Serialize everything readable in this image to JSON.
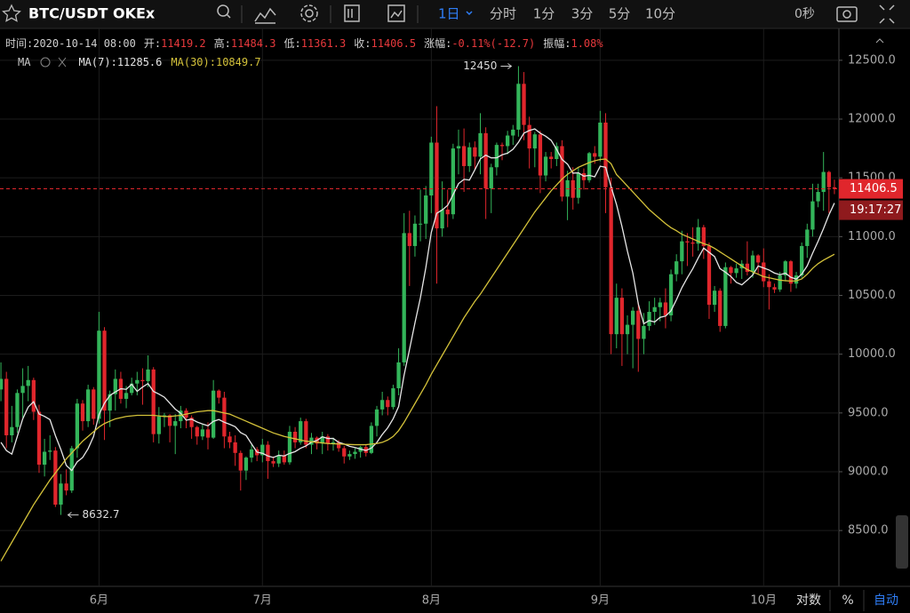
{
  "toolbar": {
    "symbol": "BTC/USDT OKEx",
    "interval": "1日",
    "intervals": [
      "分时",
      "1分",
      "3分",
      "5分",
      "10分"
    ],
    "countdown_setting": "0秒"
  },
  "header": {
    "time_label": "时间:",
    "time": "2020-10-14 08:00",
    "open_label": "开:",
    "high_label": "高:",
    "low_label": "低:",
    "close_label": "收:",
    "change_label": "涨幅:",
    "change": "-0.11%(-12.7)",
    "amplitude_label": "振幅:",
    "amplitude": "1.08%"
  },
  "indicator": "MA",
  "bottom_bar": [
    "对数",
    "%",
    "自动"
  ],
  "chart_data": {
    "type": "candlestick",
    "categories": [
      null,
      null,
      null,
      null,
      null,
      null,
      null,
      null,
      null,
      null,
      null,
      null,
      null,
      null,
      null,
      null,
      null,
      null,
      "6月",
      null,
      null,
      null,
      null,
      null,
      null,
      null,
      null,
      null,
      null,
      null,
      null,
      null,
      null,
      null,
      null,
      null,
      null,
      null,
      null,
      null,
      null,
      null,
      null,
      null,
      null,
      null,
      null,
      null,
      "7月",
      null,
      null,
      null,
      null,
      null,
      null,
      null,
      null,
      null,
      null,
      null,
      null,
      null,
      null,
      null,
      null,
      null,
      null,
      null,
      null,
      null,
      null,
      null,
      null,
      null,
      null,
      null,
      null,
      null,
      null,
      "8月",
      null,
      null,
      null,
      null,
      null,
      null,
      null,
      null,
      null,
      null,
      null,
      null,
      null,
      null,
      null,
      null,
      null,
      null,
      null,
      null,
      null,
      null,
      null,
      null,
      null,
      null,
      null,
      null,
      null,
      null,
      "9月",
      null,
      null,
      null,
      null,
      null,
      null,
      null,
      null,
      null,
      null,
      null,
      null,
      null,
      null,
      null,
      null,
      null,
      null,
      null,
      null,
      null,
      null,
      null,
      null,
      null,
      null,
      null,
      null,
      null,
      "10月",
      null,
      null,
      null,
      null,
      null,
      null,
      null,
      null,
      null,
      null,
      null,
      null,
      null
    ],
    "ohlc": [
      [
        9700,
        9930,
        9600,
        9790
      ],
      [
        9790,
        9850,
        9200,
        9310
      ],
      [
        9310,
        9560,
        9250,
        9380
      ],
      [
        9380,
        9700,
        9330,
        9670
      ],
      [
        9670,
        9880,
        9460,
        9730
      ],
      [
        9730,
        9900,
        9600,
        9780
      ],
      [
        9780,
        9800,
        9440,
        9510
      ],
      [
        9510,
        9570,
        8990,
        9060
      ],
      [
        9060,
        9280,
        8960,
        9170
      ],
      [
        9170,
        9310,
        9100,
        9180
      ],
      [
        9180,
        9210,
        8700,
        8720
      ],
      [
        8720,
        8980,
        8632.7,
        8900
      ],
      [
        8900,
        9020,
        8800,
        8840
      ],
      [
        8840,
        9220,
        8820,
        9200
      ],
      [
        9200,
        9620,
        9120,
        9580
      ],
      [
        9580,
        9610,
        9350,
        9430
      ],
      [
        9430,
        9740,
        9380,
        9700
      ],
      [
        9700,
        9720,
        9400,
        9450
      ],
      [
        9450,
        10360,
        9410,
        10200
      ],
      [
        10200,
        10230,
        9270,
        9520
      ],
      [
        9520,
        9690,
        9380,
        9660
      ],
      [
        9660,
        9870,
        9520,
        9790
      ],
      [
        9790,
        9850,
        9580,
        9620
      ],
      [
        9620,
        9730,
        9540,
        9670
      ],
      [
        9670,
        9800,
        9650,
        9750
      ],
      [
        9750,
        9850,
        9650,
        9780
      ],
      [
        9780,
        9880,
        9570,
        9770
      ],
      [
        9770,
        9990,
        9720,
        9870
      ],
      [
        9870,
        9890,
        9250,
        9320
      ],
      [
        9320,
        9550,
        9240,
        9470
      ],
      [
        9470,
        9500,
        9380,
        9480
      ],
      [
        9480,
        9490,
        9250,
        9390
      ],
      [
        9390,
        9490,
        9150,
        9430
      ],
      [
        9430,
        9560,
        9370,
        9520
      ],
      [
        9520,
        9540,
        9370,
        9460
      ],
      [
        9460,
        9480,
        9280,
        9380
      ],
      [
        9380,
        9390,
        9230,
        9300
      ],
      [
        9300,
        9400,
        9270,
        9360
      ],
      [
        9360,
        9420,
        9190,
        9290
      ],
      [
        9290,
        9780,
        9280,
        9690
      ],
      [
        9690,
        9700,
        9580,
        9630
      ],
      [
        9630,
        9680,
        9200,
        9300
      ],
      [
        9300,
        9340,
        9200,
        9250
      ],
      [
        9250,
        9310,
        9050,
        9160
      ],
      [
        9160,
        9180,
        8840,
        9010
      ],
      [
        9010,
        9130,
        8930,
        9120
      ],
      [
        9120,
        9230,
        9080,
        9190
      ],
      [
        9190,
        9210,
        9090,
        9140
      ],
      [
        9140,
        9280,
        9080,
        9230
      ],
      [
        9230,
        9260,
        8940,
        9090
      ],
      [
        9090,
        9130,
        9040,
        9070
      ],
      [
        9070,
        9180,
        9040,
        9140
      ],
      [
        9140,
        9180,
        9060,
        9080
      ],
      [
        9080,
        9390,
        9060,
        9340
      ],
      [
        9340,
        9380,
        9200,
        9250
      ],
      [
        9250,
        9460,
        9230,
        9430
      ],
      [
        9430,
        9450,
        9200,
        9230
      ],
      [
        9230,
        9330,
        9150,
        9290
      ],
      [
        9290,
        9300,
        9190,
        9240
      ],
      [
        9240,
        9340,
        9150,
        9300
      ],
      [
        9300,
        9320,
        9180,
        9240
      ],
      [
        9240,
        9290,
        9180,
        9250
      ],
      [
        9250,
        9270,
        9170,
        9200
      ],
      [
        9200,
        9220,
        9070,
        9130
      ],
      [
        9130,
        9180,
        9100,
        9150
      ],
      [
        9150,
        9200,
        9110,
        9170
      ],
      [
        9170,
        9220,
        9120,
        9210
      ],
      [
        9210,
        9230,
        9130,
        9160
      ],
      [
        9160,
        9420,
        9150,
        9390
      ],
      [
        9390,
        9560,
        9300,
        9530
      ],
      [
        9530,
        9680,
        9480,
        9610
      ],
      [
        9610,
        9640,
        9480,
        9550
      ],
      [
        9550,
        9740,
        9530,
        9710
      ],
      [
        9710,
        10050,
        9650,
        9930
      ],
      [
        9930,
        11200,
        9900,
        11030
      ],
      [
        11030,
        11220,
        10580,
        10920
      ],
      [
        10920,
        11180,
        10830,
        11110
      ],
      [
        11110,
        11400,
        10960,
        11110
      ],
      [
        11110,
        11430,
        10980,
        11350
      ],
      [
        11350,
        11850,
        11200,
        11800
      ],
      [
        11800,
        12110,
        10600,
        11070
      ],
      [
        11070,
        11470,
        11000,
        11230
      ],
      [
        11230,
        11400,
        11080,
        11190
      ],
      [
        11190,
        11790,
        11150,
        11750
      ],
      [
        11750,
        11910,
        11530,
        11770
      ],
      [
        11770,
        11920,
        11380,
        11600
      ],
      [
        11600,
        11800,
        11550,
        11760
      ],
      [
        11760,
        11810,
        11570,
        11680
      ],
      [
        11680,
        12050,
        11530,
        11880
      ],
      [
        11880,
        11930,
        11150,
        11410
      ],
      [
        11410,
        11620,
        11200,
        11590
      ],
      [
        11590,
        11800,
        11520,
        11780
      ],
      [
        11780,
        11800,
        11650,
        11770
      ],
      [
        11770,
        11900,
        11700,
        11860
      ],
      [
        11860,
        11950,
        11780,
        11910
      ],
      [
        11910,
        12450,
        11850,
        12300
      ],
      [
        12300,
        12400,
        11820,
        11950
      ],
      [
        11950,
        12020,
        11580,
        11750
      ],
      [
        11750,
        11890,
        11590,
        11870
      ],
      [
        11870,
        11900,
        11370,
        11520
      ],
      [
        11520,
        11720,
        11470,
        11680
      ],
      [
        11680,
        11720,
        11580,
        11660
      ],
      [
        11660,
        11800,
        11600,
        11770
      ],
      [
        11770,
        11820,
        11300,
        11340
      ],
      [
        11340,
        11560,
        11140,
        11480
      ],
      [
        11480,
        11590,
        11230,
        11330
      ],
      [
        11330,
        11590,
        11280,
        11540
      ],
      [
        11540,
        11580,
        11400,
        11480
      ],
      [
        11480,
        11720,
        11460,
        11710
      ],
      [
        11710,
        11770,
        11620,
        11680
      ],
      [
        11680,
        12070,
        11640,
        11970
      ],
      [
        11970,
        12050,
        11200,
        11420
      ],
      [
        11420,
        11500,
        10000,
        10170
      ],
      [
        10170,
        10600,
        10050,
        10480
      ],
      [
        10480,
        10560,
        9900,
        10170
      ],
      [
        10170,
        10330,
        10000,
        10250
      ],
      [
        10250,
        10400,
        9880,
        10370
      ],
      [
        10370,
        10440,
        9850,
        10130
      ],
      [
        10130,
        10350,
        10000,
        10240
      ],
      [
        10240,
        10450,
        10200,
        10360
      ],
      [
        10360,
        10480,
        10250,
        10400
      ],
      [
        10400,
        10480,
        10280,
        10440
      ],
      [
        10440,
        10560,
        10220,
        10330
      ],
      [
        10330,
        10720,
        10280,
        10680
      ],
      [
        10680,
        10850,
        10620,
        10790
      ],
      [
        10790,
        11050,
        10680,
        10960
      ],
      [
        10960,
        11030,
        10750,
        10950
      ],
      [
        10950,
        11080,
        10830,
        10940
      ],
      [
        10940,
        11150,
        10880,
        11080
      ],
      [
        11080,
        11100,
        10810,
        10920
      ],
      [
        10920,
        10950,
        10300,
        10420
      ],
      [
        10420,
        10580,
        10360,
        10540
      ],
      [
        10540,
        10560,
        10190,
        10240
      ],
      [
        10240,
        10780,
        10220,
        10740
      ],
      [
        10740,
        10750,
        10600,
        10690
      ],
      [
        10690,
        10770,
        10650,
        10730
      ],
      [
        10730,
        10800,
        10640,
        10770
      ],
      [
        10770,
        10960,
        10670,
        10700
      ],
      [
        10700,
        10880,
        10650,
        10840
      ],
      [
        10840,
        10850,
        10680,
        10780
      ],
      [
        10780,
        10900,
        10570,
        10620
      ],
      [
        10620,
        10680,
        10380,
        10570
      ],
      [
        10570,
        10600,
        10520,
        10550
      ],
      [
        10550,
        10700,
        10530,
        10670
      ],
      [
        10670,
        10800,
        10620,
        10790
      ],
      [
        10790,
        10800,
        10530,
        10600
      ],
      [
        10600,
        10700,
        10560,
        10670
      ],
      [
        10670,
        10950,
        10650,
        10920
      ],
      [
        10920,
        11110,
        10820,
        11060
      ],
      [
        11060,
        11450,
        11000,
        11300
      ],
      [
        11300,
        11450,
        11250,
        11380
      ],
      [
        11380,
        11720,
        11220,
        11550
      ],
      [
        11550,
        11560,
        11200,
        11420
      ],
      [
        11419.2,
        11484.3,
        11361.3,
        11406.5
      ]
    ],
    "up_color": "#33b55a",
    "down_color": "#e0262c",
    "series": [
      {
        "name": "MA(7):",
        "color": "#e6e6e6",
        "values": [
          9250,
          9180,
          9150,
          9300,
          9450,
          9550,
          9596,
          9491,
          9471,
          9443,
          9307,
          9189,
          9054,
          9010,
          9084,
          9121,
          9196,
          9300,
          9486,
          9583,
          9649,
          9679,
          9706,
          9701,
          9744,
          9684,
          9720,
          9750,
          9683,
          9661,
          9634,
          9583,
          9533,
          9497,
          9439,
          9447,
          9423,
          9406,
          9391,
          9429,
          9444,
          9421,
          9403,
          9383,
          9333,
          9309,
          9237,
          9167,
          9157,
          9134,
          9121,
          9140,
          9134,
          9156,
          9171,
          9200,
          9220,
          9251,
          9266,
          9297,
          9283,
          9283,
          9250,
          9236,
          9216,
          9206,
          9193,
          9181,
          9201,
          9249,
          9317,
          9374,
          9451,
          9554,
          9821,
          10040,
          10266,
          10480,
          10737,
          11036,
          11199,
          11227,
          11266,
          11357,
          11451,
          11487,
          11481,
          11569,
          11661,
          11693,
          11670,
          11671,
          11696,
          11710,
          11743,
          11803,
          11880,
          11903,
          11916,
          11880,
          11854,
          11819,
          11743,
          11656,
          11617,
          11540,
          11543,
          11514,
          11521,
          11509,
          11599,
          11590,
          11424,
          11273,
          11086,
          10877,
          10690,
          10427,
          10259,
          10286,
          10274,
          10313,
          10324,
          10369,
          10463,
          10566,
          10650,
          10727,
          10819,
          10903,
          10866,
          10830,
          10727,
          10697,
          10661,
          10611,
          10590,
          10630,
          10673,
          10750,
          10733,
          10716,
          10690,
          10676,
          10689,
          10654,
          10639,
          10681,
          10751,
          10859,
          10960,
          11069,
          11186,
          11285.6
        ]
      },
      {
        "name": "MA(30):",
        "color": "#d4c23a",
        "values": [
          8240,
          8320,
          8400,
          8480,
          8560,
          8640,
          8720,
          8790,
          8860,
          8930,
          8990,
          9050,
          9110,
          9160,
          9210,
          9260,
          9300,
          9340,
          9380,
          9410,
          9430,
          9450,
          9460,
          9470,
          9475,
          9480,
          9480,
          9480,
          9480,
          9475,
          9470,
          9470,
          9475,
          9480,
          9490,
          9500,
          9510,
          9515,
          9520,
          9520,
          9510,
          9500,
          9490,
          9470,
          9450,
          9430,
          9410,
          9390,
          9370,
          9350,
          9330,
          9315,
          9300,
          9290,
          9280,
          9270,
          9260,
          9255,
          9250,
          9245,
          9240,
          9238,
          9236,
          9234,
          9232,
          9230,
          9230,
          9230,
          9235,
          9240,
          9250,
          9270,
          9300,
          9350,
          9420,
          9500,
          9580,
          9660,
          9740,
          9830,
          9910,
          9990,
          10070,
          10150,
          10230,
          10310,
          10380,
          10450,
          10510,
          10580,
          10650,
          10720,
          10790,
          10860,
          10930,
          11000,
          11070,
          11140,
          11210,
          11270,
          11330,
          11390,
          11440,
          11490,
          11530,
          11560,
          11590,
          11610,
          11630,
          11645,
          11656,
          11660,
          11620,
          11528,
          11480,
          11430,
          11380,
          11330,
          11280,
          11230,
          11190,
          11150,
          11110,
          11076,
          11050,
          11020,
          11000,
          10980,
          10960,
          10940,
          10925,
          10900,
          10870,
          10840,
          10810,
          10780,
          10750,
          10720,
          10700,
          10680,
          10660,
          10650,
          10640,
          10630,
          10625,
          10622,
          10624,
          10640,
          10680,
          10730,
          10770,
          10800,
          10825,
          10849.7
        ]
      }
    ],
    "ylim": [
      8025,
      12771
    ],
    "yticks": [
      {
        "value": 8500,
        "label": "8500.0"
      },
      {
        "value": 9000,
        "label": "9000.0"
      },
      {
        "value": 9500,
        "label": "9500.0"
      },
      {
        "value": 10000,
        "label": "10000.0"
      },
      {
        "value": 10500,
        "label": "10500.0"
      },
      {
        "value": 11000,
        "label": "11000.0"
      },
      {
        "value": 11500,
        "label": "11500.0"
      },
      {
        "value": 12000,
        "label": "12000.0"
      },
      {
        "value": 12500,
        "label": "12500.0"
      }
    ],
    "grid": true,
    "countdown": "19:17:27"
  }
}
